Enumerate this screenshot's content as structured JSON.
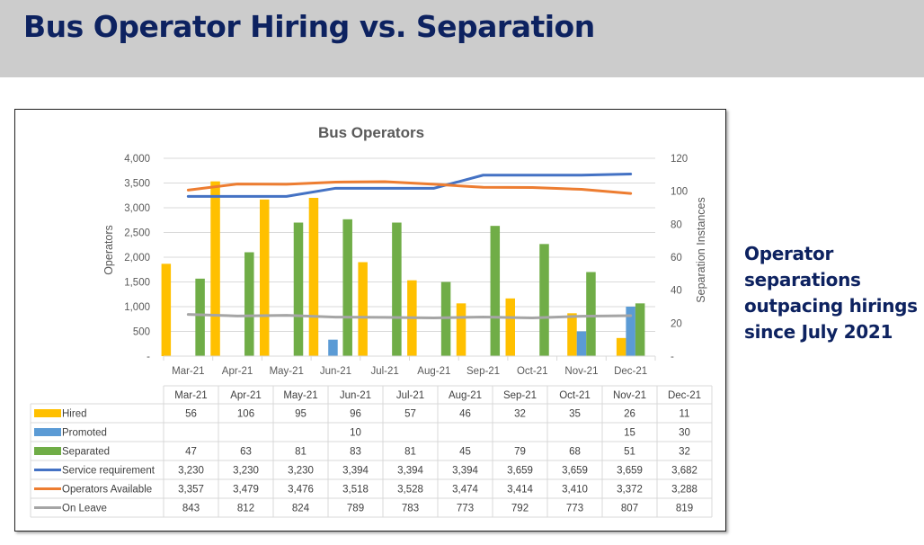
{
  "header": {
    "title": "Bus Operator Hiring vs. Separation"
  },
  "note": {
    "lines": [
      "Operator",
      "separations",
      "outpacing hirings",
      "since July 2021"
    ]
  },
  "colors": {
    "hired": "#ffc000",
    "promoted": "#5b9bd5",
    "separated": "#70ad47",
    "service": "#4472c4",
    "available": "#ed7d31",
    "leave": "#a5a5a5",
    "title_navy": "#0d2260"
  },
  "chart_data": {
    "type": "bar",
    "title": "Bus Operators",
    "ylabel": "Operators",
    "y2label": "Separation Instances",
    "ylim": [
      0,
      4000
    ],
    "y2lim": [
      0,
      120
    ],
    "yticks": [
      "4,000",
      "3,500",
      "3,000",
      "2,500",
      "2,000",
      "1,500",
      "1,000",
      "500",
      "-"
    ],
    "y2ticks": [
      "120",
      "100",
      "80",
      "60",
      "40",
      "20",
      "-"
    ],
    "grid": true,
    "legend": "data-table-bottom",
    "categories": [
      "Mar-21",
      "Apr-21",
      "May-21",
      "Jun-21",
      "Jul-21",
      "Aug-21",
      "Sep-21",
      "Oct-21",
      "Nov-21",
      "Dec-21"
    ],
    "bar_series": [
      {
        "name": "Hired",
        "color_key": "hired",
        "axis": "secondary",
        "values": [
          56,
          106,
          95,
          96,
          57,
          46,
          32,
          35,
          26,
          11
        ],
        "labels": [
          "56",
          "106",
          "95",
          "96",
          "57",
          "46",
          "32",
          "35",
          "26",
          "11"
        ]
      },
      {
        "name": "Promoted",
        "color_key": "promoted",
        "axis": "secondary",
        "values": [
          null,
          null,
          null,
          10,
          null,
          null,
          null,
          null,
          15,
          30
        ],
        "labels": [
          "",
          "",
          "",
          "10",
          "",
          "",
          "",
          "",
          "15",
          "30"
        ]
      },
      {
        "name": "Separated",
        "color_key": "separated",
        "axis": "secondary",
        "values": [
          47,
          63,
          81,
          83,
          81,
          45,
          79,
          68,
          51,
          32
        ],
        "labels": [
          "47",
          "63",
          "81",
          "83",
          "81",
          "45",
          "79",
          "68",
          "51",
          "32"
        ]
      }
    ],
    "line_series": [
      {
        "name": "Service requirement",
        "color_key": "service",
        "axis": "primary",
        "values": [
          3230,
          3230,
          3230,
          3394,
          3394,
          3394,
          3659,
          3659,
          3659,
          3682
        ],
        "labels": [
          "3,230",
          "3,230",
          "3,230",
          "3,394",
          "3,394",
          "3,394",
          "3,659",
          "3,659",
          "3,659",
          "3,682"
        ]
      },
      {
        "name": "Operators Available",
        "color_key": "available",
        "axis": "primary",
        "values": [
          3357,
          3479,
          3476,
          3518,
          3528,
          3474,
          3414,
          3410,
          3372,
          3288
        ],
        "labels": [
          "3,357",
          "3,479",
          "3,476",
          "3,518",
          "3,528",
          "3,474",
          "3,414",
          "3,410",
          "3,372",
          "3,288"
        ]
      },
      {
        "name": "On Leave",
        "color_key": "leave",
        "axis": "primary",
        "values": [
          843,
          812,
          824,
          789,
          783,
          773,
          792,
          773,
          807,
          819
        ],
        "labels": [
          "843",
          "812",
          "824",
          "789",
          "783",
          "773",
          "792",
          "773",
          "807",
          "819"
        ]
      }
    ]
  }
}
